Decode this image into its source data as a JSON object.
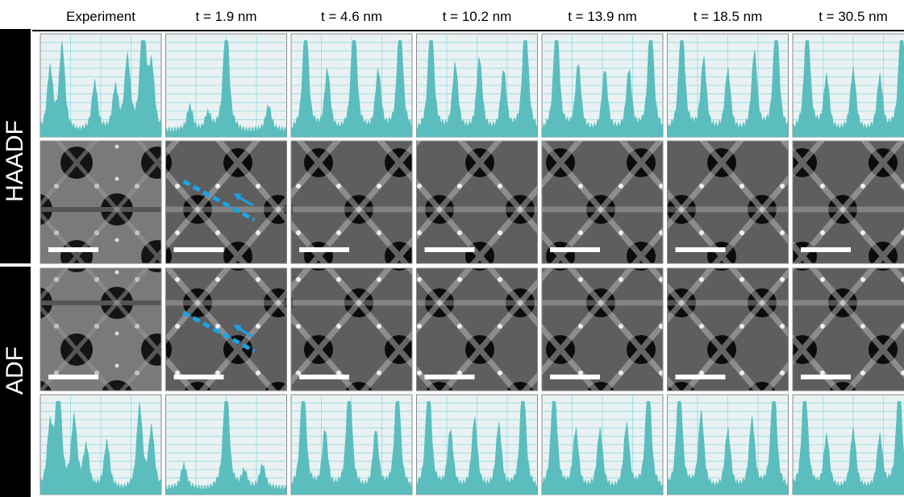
{
  "header": {
    "columns": [
      "Experiment",
      "t = 1.9 nm",
      "t = 4.6 nm",
      "t = 10.2 nm",
      "t = 13.9 nm",
      "t = 18.5 nm",
      "t = 30.5 nm"
    ]
  },
  "rows": {
    "labels": [
      "HAADF",
      "ADF"
    ]
  }
}
